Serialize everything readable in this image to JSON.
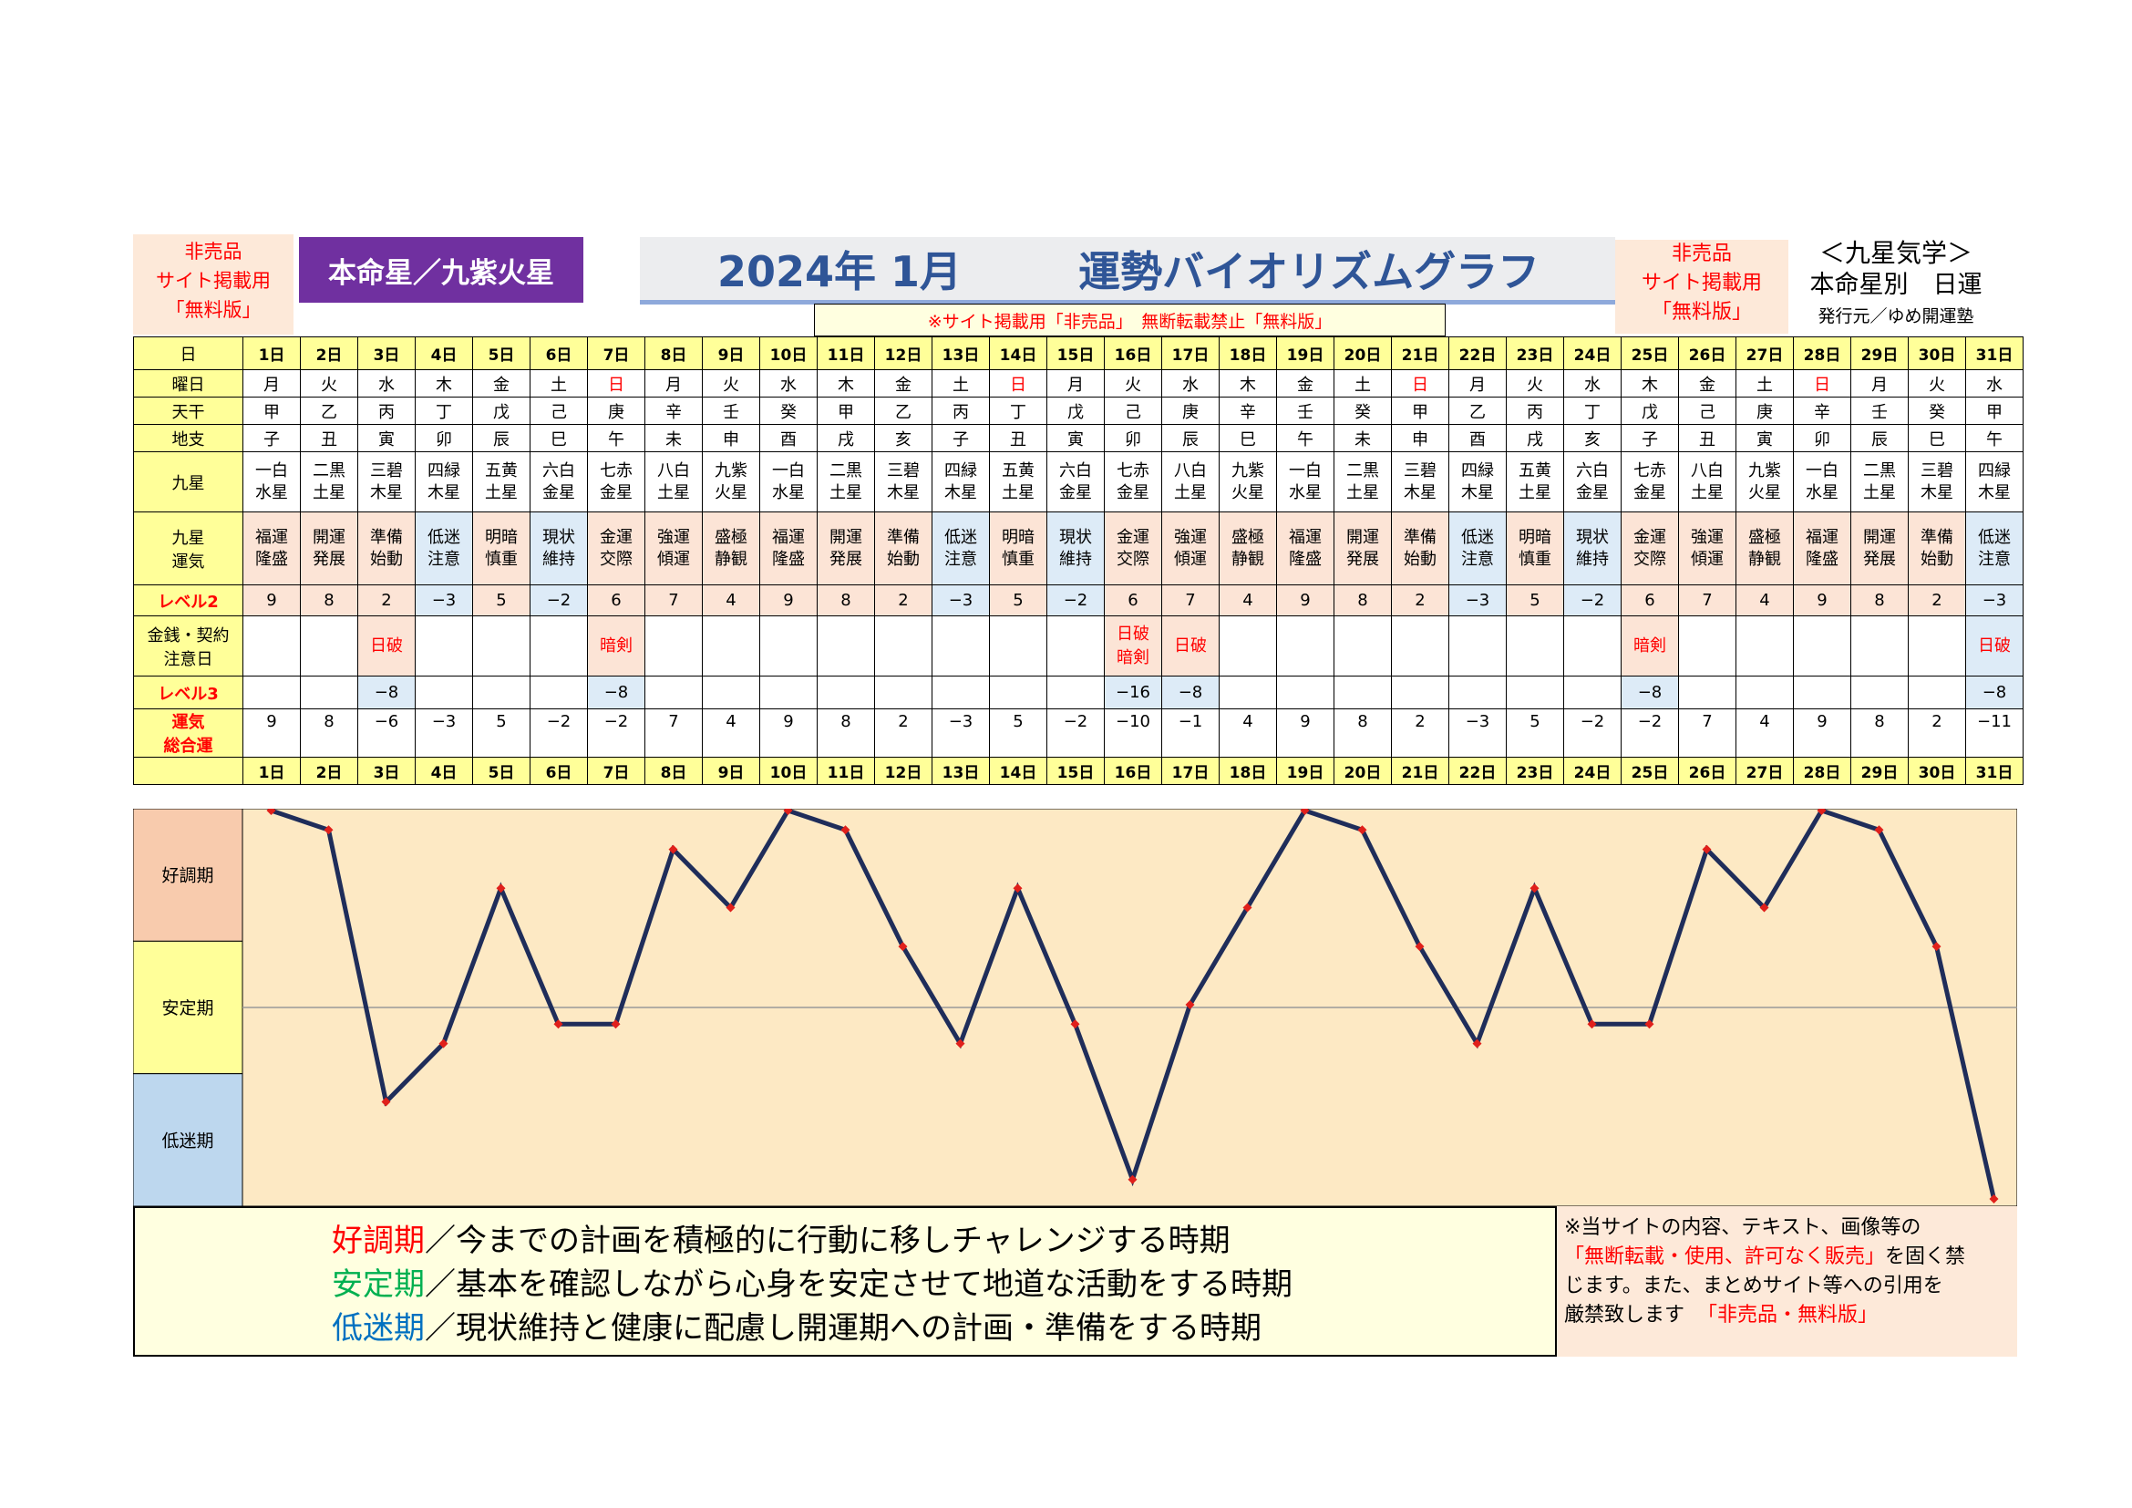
{
  "header": {
    "left_notice": [
      "非売品",
      "サイト掲載用",
      "「無料版」"
    ],
    "honmeisei": "本命星／九紫火星",
    "title_year_month": "2024年 1月",
    "title_main": "運勢バイオリズムグラフ",
    "right_notice": [
      "非売品",
      "サイト掲載用",
      "「無料版」"
    ],
    "site_notice": "※サイト掲載用「非売品」　無断転載禁止「無料版」",
    "kyusei_label": "＜九星気学＞",
    "kyusei_sub": "本命星別　日運",
    "publisher": "発行元／ゆめ開運塾"
  },
  "labels": {
    "day": "日",
    "weekday": "曜日",
    "tenkan": "天干",
    "chishi": "地支",
    "kyusei": [
      "九星"
    ],
    "kyusei_unki": [
      "九星",
      "運気"
    ],
    "level2": "レベル2",
    "caution": [
      "金銭・契約",
      "注意日"
    ],
    "level3": "レベル3",
    "total": [
      "運気",
      "総合運"
    ],
    "zone_good": "好調期",
    "zone_stable": "安定期",
    "zone_low": "低迷期"
  },
  "table": {
    "days": [
      "1日",
      "2日",
      "3日",
      "4日",
      "5日",
      "6日",
      "7日",
      "8日",
      "9日",
      "10日",
      "11日",
      "12日",
      "13日",
      "14日",
      "15日",
      "16日",
      "17日",
      "18日",
      "19日",
      "20日",
      "21日",
      "22日",
      "23日",
      "24日",
      "25日",
      "26日",
      "27日",
      "28日",
      "29日",
      "30日",
      "31日"
    ],
    "weekdays": [
      "月",
      "火",
      "水",
      "木",
      "金",
      "土",
      "日",
      "月",
      "火",
      "水",
      "木",
      "金",
      "土",
      "日",
      "月",
      "火",
      "水",
      "木",
      "金",
      "土",
      "日",
      "月",
      "火",
      "水",
      "木",
      "金",
      "土",
      "日",
      "月",
      "火",
      "水"
    ],
    "tenkan": [
      "甲",
      "乙",
      "丙",
      "丁",
      "戊",
      "己",
      "庚",
      "辛",
      "壬",
      "癸",
      "甲",
      "乙",
      "丙",
      "丁",
      "戊",
      "己",
      "庚",
      "辛",
      "壬",
      "癸",
      "甲",
      "乙",
      "丙",
      "丁",
      "戊",
      "己",
      "庚",
      "辛",
      "壬",
      "癸",
      "甲"
    ],
    "chishi": [
      "子",
      "丑",
      "寅",
      "卯",
      "辰",
      "巳",
      "午",
      "未",
      "申",
      "酉",
      "戌",
      "亥",
      "子",
      "丑",
      "寅",
      "卯",
      "辰",
      "巳",
      "午",
      "未",
      "申",
      "酉",
      "戌",
      "亥",
      "子",
      "丑",
      "寅",
      "卯",
      "辰",
      "巳",
      "午"
    ],
    "kyusei": [
      [
        "一白",
        "水星"
      ],
      [
        "二黒",
        "土星"
      ],
      [
        "三碧",
        "木星"
      ],
      [
        "四緑",
        "木星"
      ],
      [
        "五黄",
        "土星"
      ],
      [
        "六白",
        "金星"
      ],
      [
        "七赤",
        "金星"
      ],
      [
        "八白",
        "土星"
      ],
      [
        "九紫",
        "火星"
      ],
      [
        "一白",
        "水星"
      ],
      [
        "二黒",
        "土星"
      ],
      [
        "三碧",
        "木星"
      ],
      [
        "四緑",
        "木星"
      ],
      [
        "五黄",
        "土星"
      ],
      [
        "六白",
        "金星"
      ],
      [
        "七赤",
        "金星"
      ],
      [
        "八白",
        "土星"
      ],
      [
        "九紫",
        "火星"
      ],
      [
        "一白",
        "水星"
      ],
      [
        "二黒",
        "土星"
      ],
      [
        "三碧",
        "木星"
      ],
      [
        "四緑",
        "木星"
      ],
      [
        "五黄",
        "土星"
      ],
      [
        "六白",
        "金星"
      ],
      [
        "七赤",
        "金星"
      ],
      [
        "八白",
        "土星"
      ],
      [
        "九紫",
        "火星"
      ],
      [
        "一白",
        "水星"
      ],
      [
        "二黒",
        "土星"
      ],
      [
        "三碧",
        "木星"
      ],
      [
        "四緑",
        "木星"
      ]
    ],
    "unki": [
      [
        "福運",
        "隆盛"
      ],
      [
        "開運",
        "発展"
      ],
      [
        "準備",
        "始動"
      ],
      [
        "低迷",
        "注意"
      ],
      [
        "明暗",
        "慎重"
      ],
      [
        "現状",
        "維持"
      ],
      [
        "金運",
        "交際"
      ],
      [
        "強運",
        "傾運"
      ],
      [
        "盛極",
        "静観"
      ],
      [
        "福運",
        "隆盛"
      ],
      [
        "開運",
        "発展"
      ],
      [
        "準備",
        "始動"
      ],
      [
        "低迷",
        "注意"
      ],
      [
        "明暗",
        "慎重"
      ],
      [
        "現状",
        "維持"
      ],
      [
        "金運",
        "交際"
      ],
      [
        "強運",
        "傾運"
      ],
      [
        "盛極",
        "静観"
      ],
      [
        "福運",
        "隆盛"
      ],
      [
        "開運",
        "発展"
      ],
      [
        "準備",
        "始動"
      ],
      [
        "低迷",
        "注意"
      ],
      [
        "明暗",
        "慎重"
      ],
      [
        "現状",
        "維持"
      ],
      [
        "金運",
        "交際"
      ],
      [
        "強運",
        "傾運"
      ],
      [
        "盛極",
        "静観"
      ],
      [
        "福運",
        "隆盛"
      ],
      [
        "開運",
        "発展"
      ],
      [
        "準備",
        "始動"
      ],
      [
        "低迷",
        "注意"
      ]
    ],
    "level2": [
      "9",
      "8",
      "2",
      "−3",
      "5",
      "−2",
      "6",
      "7",
      "4",
      "9",
      "8",
      "2",
      "−3",
      "5",
      "−2",
      "6",
      "7",
      "4",
      "9",
      "8",
      "2",
      "−3",
      "5",
      "−2",
      "6",
      "7",
      "4",
      "9",
      "8",
      "2",
      "−3"
    ],
    "caution": [
      [],
      [],
      [
        "日破"
      ],
      [],
      [],
      [],
      [
        "暗剣"
      ],
      [],
      [],
      [],
      [],
      [],
      [],
      [],
      [],
      [
        "日破",
        "暗剣"
      ],
      [
        "日破"
      ],
      [],
      [],
      [],
      [],
      [],
      [],
      [],
      [
        "暗剣"
      ],
      [],
      [],
      [],
      [],
      [],
      [
        "日破"
      ]
    ],
    "level3": [
      "",
      "",
      "−8",
      "",
      "",
      "",
      "−8",
      "",
      "",
      "",
      "",
      "",
      "",
      "",
      "",
      "−16",
      "−8",
      "",
      "",
      "",
      "",
      "",
      "",
      "",
      "−8",
      "",
      "",
      "",
      "",
      "",
      "−8"
    ],
    "total": [
      "9",
      "8",
      "−6",
      "−3",
      "5",
      "−2",
      "−2",
      "7",
      "4",
      "9",
      "8",
      "2",
      "−3",
      "5",
      "−2",
      "−10",
      "−1",
      "4",
      "9",
      "8",
      "2",
      "−3",
      "5",
      "−2",
      "−2",
      "7",
      "4",
      "9",
      "8",
      "2",
      "−11"
    ]
  },
  "chart_data": {
    "type": "line",
    "x": [
      "1日",
      "2日",
      "3日",
      "4日",
      "5日",
      "6日",
      "7日",
      "8日",
      "9日",
      "10日",
      "11日",
      "12日",
      "13日",
      "14日",
      "15日",
      "16日",
      "17日",
      "18日",
      "19日",
      "20日",
      "21日",
      "22日",
      "23日",
      "24日",
      "25日",
      "26日",
      "27日",
      "28日",
      "29日",
      "30日",
      "31日"
    ],
    "series": [
      {
        "values": [
          9,
          8,
          -6,
          -3,
          5,
          -2,
          -2,
          7,
          4,
          9,
          8,
          2,
          -3,
          5,
          -2,
          -10,
          -1,
          4,
          9,
          8,
          2,
          -3,
          5,
          -2,
          -2,
          7,
          4,
          9,
          8,
          2,
          -11
        ]
      }
    ],
    "ylim": [
      -11,
      9
    ],
    "zones": [
      "好調期",
      "安定期",
      "低迷期"
    ],
    "line_color": "#1f2d5a",
    "marker_color": "#e0201b",
    "background": "#fde9c4"
  },
  "legend": {
    "good_term": "好調期",
    "good_text": "／今までの計画を積極的に行動に移しチャレンジする時期",
    "stable_term": "安定期",
    "stable_text": "／基本を確認しながら心身を安定させて地道な活動をする時期",
    "low_term": "低迷期",
    "low_text": "／現状維持と健康に配慮し開運期への計画・準備をする時期",
    "good_color": "#ff0000",
    "stable_color": "#00b050",
    "low_color": "#0070c0"
  },
  "disclaimer": {
    "line1": "※当サイトの内容、テキスト、画像等の",
    "line2_red": "「無断転載・使用、許可なく販売」",
    "line2_rest": "を固く禁",
    "line3": "じます。また、まとめサイト等への引用を",
    "line4": "厳禁致します",
    "line4_red": "「非売品・無料版」"
  }
}
